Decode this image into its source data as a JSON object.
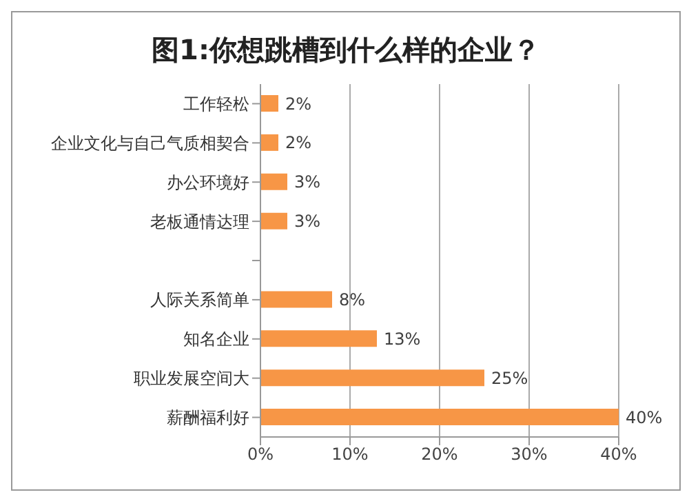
{
  "chart_data": {
    "type": "bar",
    "orientation": "horizontal",
    "title": "图1:你想跳槽到什么样的企业？",
    "categories": [
      "工作轻松",
      "企业文化与自己气质相契合",
      "办公环境好",
      "老板通情达理",
      null,
      "人际关系简单",
      "知名企业",
      "职业发展空间大",
      "薪酬福利好"
    ],
    "values": [
      2,
      2,
      3,
      3,
      null,
      8,
      13,
      25,
      40
    ],
    "value_labels": [
      "2%",
      "2%",
      "3%",
      "3%",
      null,
      "8%",
      "13%",
      "25%",
      "40%"
    ],
    "color": "#f79646",
    "xlim": [
      0,
      40
    ],
    "xticks": [
      {
        "value": 0,
        "label": "0%"
      },
      {
        "value": 10,
        "label": "10%"
      },
      {
        "value": 20,
        "label": "20%"
      },
      {
        "value": 30,
        "label": "30%"
      },
      {
        "value": 40,
        "label": "40%"
      }
    ],
    "grid": "x"
  }
}
